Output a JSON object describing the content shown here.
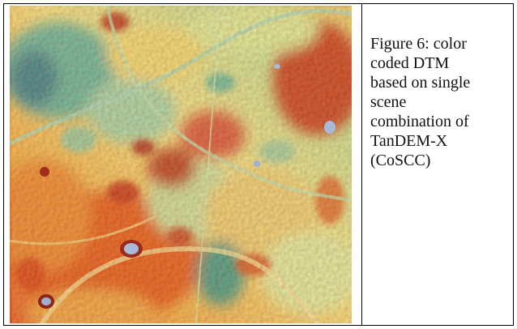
{
  "figure": {
    "caption_lines": [
      "Figure 6: color",
      "coded DTM",
      "based on single",
      "scene",
      "combination of",
      "TanDEM-X",
      "(CoSCC)"
    ],
    "image_kind": "color-coded-dtm-raster",
    "palette": {
      "low": "#2b8fa0",
      "mid_low": "#8fd3b8",
      "mid": "#f2e37a",
      "mid_high": "#f0a040",
      "high": "#c9301f",
      "outlier": "#8fa2c8"
    }
  }
}
